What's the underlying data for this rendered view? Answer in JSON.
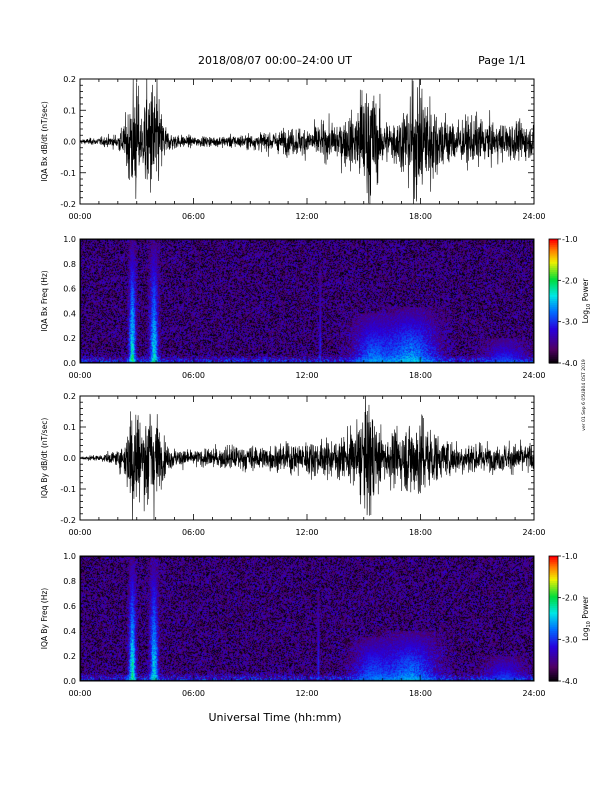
{
  "header": {
    "date_range": "2018/08/07  00:00–24:00 UT",
    "page": "Page 1/1"
  },
  "footer": {
    "xlabel": "Universal Time (hh:mm)"
  },
  "side_note": "ver 01 Sep 6 05UB04 OST 2019",
  "colorbar": {
    "label_main": "Log",
    "label_sub": "10",
    "label_tail": " Power",
    "ticks": [
      "-1.0",
      "-2.0",
      "-3.0",
      "-4.0"
    ],
    "tick_values": [
      -1,
      -2,
      -3,
      -4
    ],
    "range": [
      -4,
      -1
    ]
  },
  "colors": {
    "trace": "#000000",
    "background": "#ffffff"
  },
  "chart_data": [
    {
      "type": "line",
      "id": "bx-dbdt",
      "ylabel": "IQA Bx dB/dt (nT/sec)",
      "xlim": [
        0,
        24
      ],
      "ylim": [
        -0.2,
        0.2
      ],
      "x_ticks": [
        "00:00",
        "06:00",
        "12:00",
        "18:00",
        "24:00"
      ],
      "x_tick_values": [
        0,
        6,
        12,
        18,
        24
      ],
      "y_ticks": [
        "0.2",
        "0.1",
        "0.0",
        "-0.1",
        "-0.2"
      ],
      "y_tick_values": [
        0.2,
        0.1,
        0.0,
        -0.1,
        -0.2
      ],
      "envelope": {
        "hours": [
          0,
          1,
          2,
          2.5,
          2.7,
          3.0,
          3.3,
          3.5,
          3.7,
          4.0,
          4.3,
          4.6,
          5,
          6,
          7,
          8,
          9,
          10,
          11,
          12,
          13,
          14,
          14.5,
          15,
          15.3,
          15.6,
          16,
          16.5,
          17,
          17.5,
          18,
          18.5,
          19,
          20,
          21,
          22,
          23,
          24
        ],
        "amplitude": [
          0.01,
          0.015,
          0.03,
          0.1,
          0.25,
          0.25,
          0.08,
          0.25,
          0.25,
          0.25,
          0.12,
          0.05,
          0.03,
          0.02,
          0.02,
          0.025,
          0.03,
          0.04,
          0.05,
          0.06,
          0.07,
          0.09,
          0.12,
          0.25,
          0.25,
          0.18,
          0.1,
          0.08,
          0.12,
          0.22,
          0.25,
          0.2,
          0.12,
          0.08,
          0.1,
          0.07,
          0.08,
          0.06
        ]
      }
    },
    {
      "type": "heatmap",
      "id": "bx-freq",
      "ylabel": "IQA Bx Freq (Hz)",
      "xlim": [
        0,
        24
      ],
      "ylim": [
        0.0,
        1.0
      ],
      "x_ticks": [
        "00:00",
        "06:00",
        "12:00",
        "18:00",
        "24:00"
      ],
      "x_tick_values": [
        0,
        6,
        12,
        18,
        24
      ],
      "y_ticks": [
        "1.0",
        "0.8",
        "0.6",
        "0.4",
        "0.2",
        "0.0"
      ],
      "y_tick_values": [
        1.0,
        0.8,
        0.6,
        0.4,
        0.2,
        0.0
      ],
      "bursts": [
        {
          "hour": 2.75,
          "width": 0.25,
          "fmax": 1.0,
          "power": -1.8
        },
        {
          "hour": 3.9,
          "width": 0.3,
          "fmax": 1.0,
          "power": -2.0
        },
        {
          "hour": 12.7,
          "width": 0.08,
          "fmax": 0.8,
          "power": -2.8
        },
        {
          "hour": 15.5,
          "width": 1.5,
          "fmax": 0.4,
          "power": -2.5
        },
        {
          "hour": 17.5,
          "width": 2.0,
          "fmax": 0.45,
          "power": -2.3
        },
        {
          "hour": 22.5,
          "width": 1.5,
          "fmax": 0.2,
          "power": -2.8
        }
      ]
    },
    {
      "type": "line",
      "id": "by-dbdt",
      "ylabel": "IQA By dB/dt (nT/sec)",
      "xlim": [
        0,
        24
      ],
      "ylim": [
        -0.2,
        0.2
      ],
      "x_ticks": [
        "00:00",
        "06:00",
        "12:00",
        "18:00",
        "24:00"
      ],
      "x_tick_values": [
        0,
        6,
        12,
        18,
        24
      ],
      "y_ticks": [
        "0.2",
        "0.1",
        "0.0",
        "-0.1",
        "-0.2"
      ],
      "y_tick_values": [
        0.2,
        0.1,
        0.0,
        -0.1,
        -0.2
      ],
      "envelope": {
        "hours": [
          0,
          1,
          2,
          2.5,
          2.7,
          3.0,
          3.3,
          3.5,
          3.7,
          4.0,
          4.3,
          4.6,
          5,
          6,
          7,
          8,
          9,
          10,
          11,
          12,
          13,
          14,
          14.5,
          15,
          15.3,
          15.6,
          16,
          16.5,
          17,
          17.5,
          18,
          18.5,
          19,
          20,
          21,
          22,
          23,
          24
        ],
        "amplitude": [
          0.008,
          0.012,
          0.03,
          0.12,
          0.25,
          0.25,
          0.1,
          0.25,
          0.25,
          0.2,
          0.1,
          0.05,
          0.04,
          0.03,
          0.04,
          0.05,
          0.05,
          0.05,
          0.06,
          0.07,
          0.07,
          0.09,
          0.12,
          0.2,
          0.25,
          0.15,
          0.1,
          0.1,
          0.12,
          0.16,
          0.18,
          0.14,
          0.08,
          0.07,
          0.06,
          0.05,
          0.06,
          0.06
        ]
      }
    },
    {
      "type": "heatmap",
      "id": "by-freq",
      "ylabel": "IQA By Freq (Hz)",
      "xlim": [
        0,
        24
      ],
      "ylim": [
        0.0,
        1.0
      ],
      "x_ticks": [
        "00:00",
        "06:00",
        "12:00",
        "18:00",
        "24:00"
      ],
      "x_tick_values": [
        0,
        6,
        12,
        18,
        24
      ],
      "y_ticks": [
        "1.0",
        "0.8",
        "0.6",
        "0.4",
        "0.2",
        "0.0"
      ],
      "y_tick_values": [
        1.0,
        0.8,
        0.6,
        0.4,
        0.2,
        0.0
      ],
      "bursts": [
        {
          "hour": 2.75,
          "width": 0.25,
          "fmax": 1.0,
          "power": -1.8
        },
        {
          "hour": 3.9,
          "width": 0.3,
          "fmax": 1.0,
          "power": -2.0
        },
        {
          "hour": 12.6,
          "width": 0.08,
          "fmax": 0.75,
          "power": -2.8
        },
        {
          "hour": 15.5,
          "width": 1.5,
          "fmax": 0.35,
          "power": -2.6
        },
        {
          "hour": 17.5,
          "width": 2.0,
          "fmax": 0.4,
          "power": -2.4
        },
        {
          "hour": 22.5,
          "width": 1.5,
          "fmax": 0.2,
          "power": -2.8
        }
      ]
    }
  ]
}
